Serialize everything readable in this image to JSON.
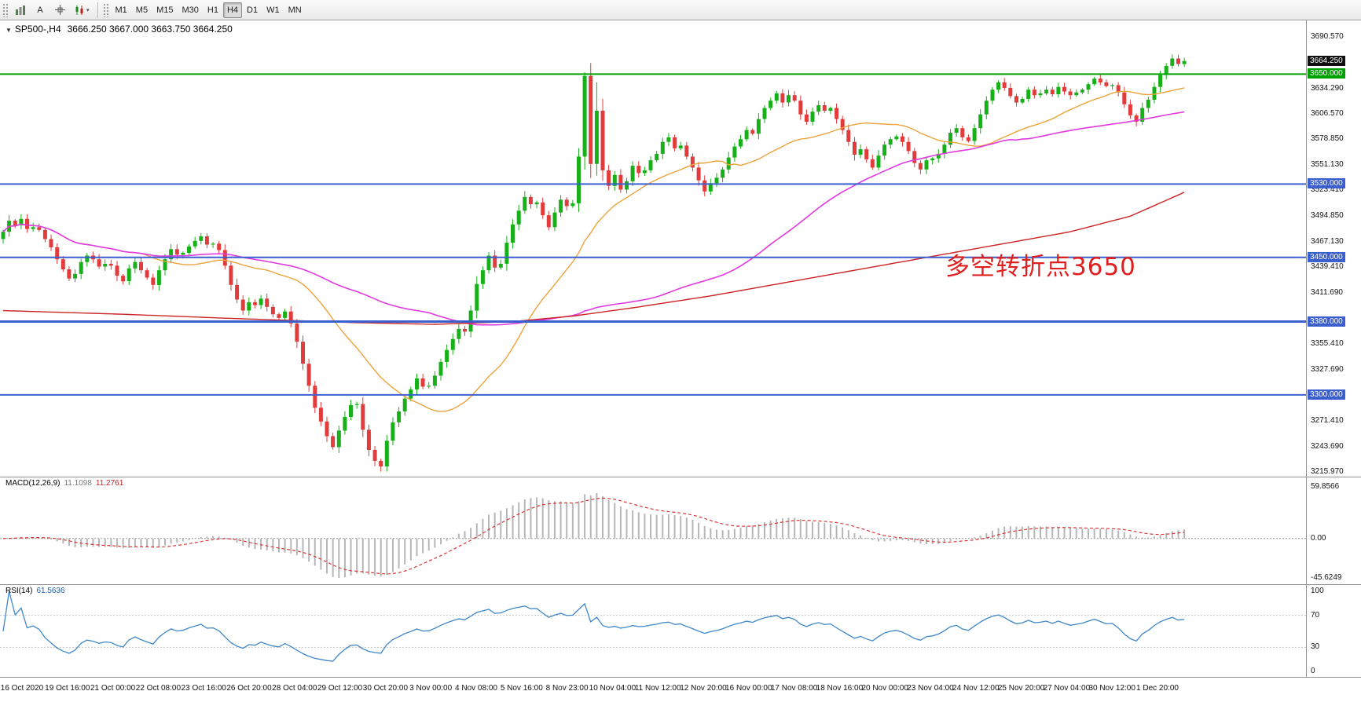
{
  "toolbar": {
    "buttons": {
      "text_tool": "A"
    },
    "timeframes": [
      "M1",
      "M5",
      "M15",
      "M30",
      "H1",
      "H4",
      "D1",
      "W1",
      "MN"
    ],
    "selected_timeframe": "H4"
  },
  "main_panel": {
    "title_symbol": "SP500-,H4",
    "title_ohlc": "3666.250 3667.000 3663.750 3664.250",
    "annotation": {
      "text": "多空转折点3650",
      "color": "#e02020"
    }
  },
  "macd_panel": {
    "label": "MACD(12,26,9)",
    "value_main": "11.1098",
    "value_signal": "11.2761",
    "axis_labels": [
      "59.8566",
      "0.00",
      "-45.6249"
    ],
    "axis_max": 59.8566,
    "axis_min": -45.6249
  },
  "rsi_panel": {
    "label": "RSI(14)",
    "value": "61.5636",
    "axis_labels": [
      "100",
      "70",
      "30",
      "0"
    ],
    "axis_values": [
      100,
      70,
      30,
      0
    ],
    "levels": [
      70,
      30
    ]
  },
  "time_axis": {
    "labels": [
      "16 Oct 2020",
      "19 Oct 16:00",
      "21 Oct 00:00",
      "22 Oct 08:00",
      "23 Oct 16:00",
      "26 Oct 20:00",
      "28 Oct 04:00",
      "29 Oct 12:00",
      "30 Oct 20:00",
      "3 Nov 00:00",
      "4 Nov 08:00",
      "5 Nov 16:00",
      "8 Nov 23:00",
      "10 Nov 04:00",
      "11 Nov 12:00",
      "12 Nov 20:00",
      "16 Nov 00:00",
      "17 Nov 08:00",
      "18 Nov 16:00",
      "20 Nov 00:00",
      "23 Nov 04:00",
      "24 Nov 12:00",
      "25 Nov 20:00",
      "27 Nov 04:00",
      "30 Nov 12:00",
      "1 Dec 20:00"
    ]
  },
  "colors": {
    "up": "#18b018",
    "down": "#e13b3b",
    "ma_fast": "#eda33b",
    "ma_mid": "#e03ae0",
    "ma_slow": "#cc2424",
    "macd_hist": "#b6b6b6",
    "macd_signal": "#d93636",
    "rsi": "#3f87c9",
    "level_blue": "#3c5fd0",
    "level_green": "#00a000",
    "current_black": "#101010"
  },
  "chart_data": {
    "type": "candlestick",
    "symbol": "SP500-",
    "timeframe": "H4",
    "current_bar": {
      "open": 3666.25,
      "high": 3667.0,
      "low": 3663.75,
      "close": 3664.25
    },
    "y_axis": {
      "top": 3690.57,
      "bottom": 3215.97,
      "plain_labels": [
        "3690.570",
        "3634.290",
        "3606.570",
        "3578.850",
        "3551.130",
        "3523.410",
        "3494.850",
        "3467.130",
        "3439.410",
        "3411.690",
        "3355.410",
        "3327.690",
        "3271.410",
        "3243.690",
        "3215.970"
      ],
      "badges": [
        {
          "text": "3664.250",
          "value": 3664.25,
          "type": "current-price"
        },
        {
          "text": "3650.000",
          "value": 3650.0,
          "type": "green-line"
        },
        {
          "text": "3530.000",
          "value": 3530.0,
          "type": "blue-line"
        },
        {
          "text": "3450.000",
          "value": 3450.0,
          "type": "blue-line"
        },
        {
          "text": "3380.000",
          "value": 3380.0,
          "type": "blue-line"
        },
        {
          "text": "3300.000",
          "value": 3300.0,
          "type": "blue-line"
        }
      ]
    },
    "hlines": [
      {
        "value": 3650.0,
        "color": "#00a000",
        "width": 2
      },
      {
        "value": 3530.0,
        "color": "#3c5fd0",
        "width": 2
      },
      {
        "value": 3450.0,
        "color": "#3c5fd0",
        "width": 2
      },
      {
        "value": 3380.0,
        "color": "#3c5fd0",
        "width": 3
      },
      {
        "value": 3300.0,
        "color": "#3c5fd0",
        "width": 2
      }
    ],
    "first_open": 3470,
    "closes": [
      3478,
      3490,
      3485,
      3492,
      3481,
      3483,
      3480,
      3470,
      3461,
      3448,
      3437,
      3427,
      3432,
      3445,
      3452,
      3448,
      3440,
      3443,
      3441,
      3430,
      3424,
      3438,
      3445,
      3436,
      3428,
      3420,
      3436,
      3448,
      3459,
      3453,
      3455,
      3462,
      3468,
      3473,
      3464,
      3465,
      3458,
      3441,
      3420,
      3404,
      3392,
      3401,
      3398,
      3405,
      3396,
      3388,
      3384,
      3391,
      3378,
      3358,
      3334,
      3310,
      3286,
      3271,
      3255,
      3243,
      3261,
      3276,
      3289,
      3290,
      3262,
      3240,
      3228,
      3222,
      3250,
      3270,
      3282,
      3296,
      3306,
      3318,
      3309,
      3310,
      3321,
      3336,
      3349,
      3361,
      3372,
      3369,
      3392,
      3421,
      3436,
      3452,
      3439,
      3443,
      3466,
      3486,
      3501,
      3516,
      3508,
      3510,
      3496,
      3483,
      3499,
      3513,
      3506,
      3509,
      3560,
      3648,
      3552,
      3610,
      3545,
      3528,
      3540,
      3524,
      3533,
      3550,
      3542,
      3545,
      3556,
      3563,
      3576,
      3581,
      3569,
      3572,
      3560,
      3548,
      3534,
      3522,
      3531,
      3537,
      3546,
      3559,
      3571,
      3579,
      3589,
      3585,
      3601,
      3613,
      3621,
      3629,
      3619,
      3627,
      3621,
      3606,
      3598,
      3609,
      3616,
      3610,
      3613,
      3601,
      3589,
      3576,
      3562,
      3568,
      3557,
      3548,
      3561,
      3573,
      3579,
      3582,
      3576,
      3566,
      3553,
      3546,
      3556,
      3558,
      3563,
      3573,
      3586,
      3591,
      3581,
      3577,
      3591,
      3606,
      3621,
      3633,
      3641,
      3635,
      3626,
      3619,
      3623,
      3633,
      3627,
      3629,
      3633,
      3628,
      3636,
      3631,
      3627,
      3630,
      3633,
      3639,
      3645,
      3641,
      3637,
      3638,
      3630,
      3617,
      3605,
      3598,
      3613,
      3622,
      3636,
      3649,
      3659,
      3667,
      3661,
      3664.3
    ],
    "wick_overrides": {
      "63": {
        "low": 3216
      },
      "97": {
        "high": 3652
      },
      "98": {
        "high": 3662
      },
      "99": {
        "high": 3641
      }
    },
    "ma_fast_period": 24,
    "ma_mid_period": 72,
    "ma_slow_anchors": [
      [
        0,
        3392
      ],
      [
        20,
        3388
      ],
      [
        40,
        3383
      ],
      [
        58,
        3379
      ],
      [
        72,
        3377
      ],
      [
        85,
        3380
      ],
      [
        95,
        3386
      ],
      [
        105,
        3395
      ],
      [
        118,
        3408
      ],
      [
        130,
        3422
      ],
      [
        142,
        3436
      ],
      [
        154,
        3450
      ],
      [
        166,
        3464
      ],
      [
        178,
        3478
      ],
      [
        188,
        3495
      ],
      [
        197,
        3521
      ]
    ]
  }
}
